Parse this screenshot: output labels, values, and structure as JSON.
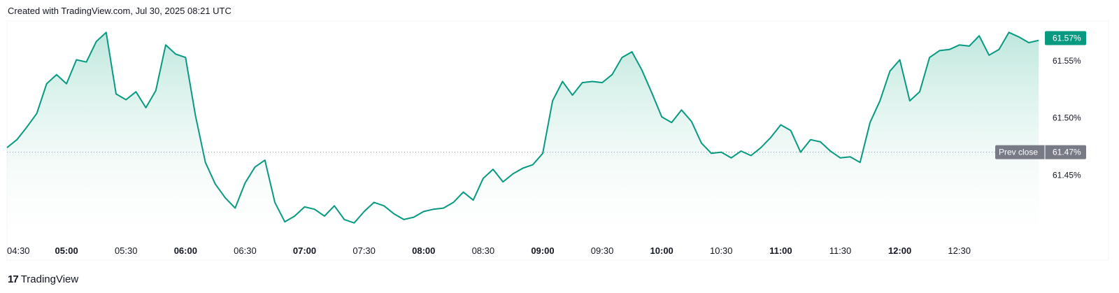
{
  "header": {
    "text": "Created with TradingView.com, Jul 30, 2025 08:21 UTC"
  },
  "footer": {
    "logo_mark": "17",
    "logo_text": "TradingView"
  },
  "colors": {
    "line": "#089981",
    "fill_top": "#a9dfd2",
    "fill_bottom": "#ffffff",
    "last_badge": "#089981",
    "prev_badge": "#787b86"
  },
  "chart_data": {
    "type": "area",
    "title": "",
    "xlabel": "",
    "ylabel": "",
    "x_ticks": [
      {
        "time": "04:30",
        "bold": false
      },
      {
        "time": "05:00",
        "bold": true
      },
      {
        "time": "05:30",
        "bold": false
      },
      {
        "time": "06:00",
        "bold": true
      },
      {
        "time": "06:30",
        "bold": false
      },
      {
        "time": "07:00",
        "bold": true
      },
      {
        "time": "07:30",
        "bold": false
      },
      {
        "time": "08:00",
        "bold": true
      },
      {
        "time": "08:30",
        "bold": false
      },
      {
        "time": "09:00",
        "bold": true
      },
      {
        "time": "09:30",
        "bold": false
      },
      {
        "time": "10:00",
        "bold": true
      },
      {
        "time": "10:30",
        "bold": false
      },
      {
        "time": "11:00",
        "bold": true
      },
      {
        "time": "11:30",
        "bold": false
      },
      {
        "time": "12:00",
        "bold": true
      },
      {
        "time": "12:30",
        "bold": false
      }
    ],
    "y_ticks": [
      "61.45%",
      "61.50%",
      "61.55%"
    ],
    "y_tick_values": [
      61.45,
      61.5,
      61.55
    ],
    "ylim": [
      61.395,
      61.585
    ],
    "xlim": [
      "04:30",
      "13:11"
    ],
    "prev_close": {
      "label": "Prev close",
      "value": 61.47,
      "text": "61.47%"
    },
    "last_value": {
      "value": 61.57,
      "text": "61.57%"
    },
    "series": [
      {
        "times": [
          "04:30",
          "04:35",
          "04:40",
          "04:45",
          "04:50",
          "04:55",
          "05:00",
          "05:05",
          "05:10",
          "05:15",
          "05:20",
          "05:25",
          "05:30",
          "05:35",
          "05:40",
          "05:45",
          "05:50",
          "05:55",
          "06:00",
          "06:05",
          "06:10",
          "06:15",
          "06:20",
          "06:25",
          "06:30",
          "06:35",
          "06:40",
          "06:45",
          "06:50",
          "06:55",
          "07:00",
          "07:05",
          "07:10",
          "07:15",
          "07:20",
          "07:25",
          "07:30",
          "07:35",
          "07:40",
          "07:45",
          "07:50",
          "07:55",
          "08:00",
          "08:05",
          "08:10",
          "08:15",
          "08:20",
          "08:25",
          "08:30",
          "08:35",
          "08:40",
          "08:45",
          "08:50",
          "08:55",
          "09:00",
          "09:05",
          "09:10",
          "09:15",
          "09:20",
          "09:25",
          "09:30",
          "09:35",
          "09:40",
          "09:45",
          "09:50",
          "09:55",
          "10:00",
          "10:05",
          "10:10",
          "10:15",
          "10:20",
          "10:25",
          "10:30",
          "10:35",
          "10:40",
          "10:45",
          "10:50",
          "10:55",
          "11:00",
          "11:05",
          "11:10",
          "11:15",
          "11:20",
          "11:25",
          "11:30",
          "11:35",
          "11:40",
          "11:45",
          "11:50",
          "11:55",
          "12:00",
          "12:05",
          "12:10",
          "12:15",
          "12:20",
          "12:25",
          "12:30",
          "12:35",
          "12:40",
          "12:45",
          "12:50",
          "12:55",
          "13:00",
          "13:05",
          "13:10"
        ],
        "values": [
          61.474,
          61.481,
          61.492,
          61.504,
          61.53,
          61.538,
          61.53,
          61.551,
          61.549,
          61.567,
          61.575,
          61.521,
          61.516,
          61.523,
          61.509,
          61.524,
          61.564,
          61.556,
          61.553,
          61.502,
          61.461,
          61.442,
          61.43,
          61.421,
          61.443,
          61.457,
          61.463,
          61.426,
          61.409,
          61.414,
          61.422,
          61.42,
          61.414,
          61.423,
          61.411,
          61.408,
          61.418,
          61.426,
          61.423,
          61.416,
          61.411,
          61.413,
          61.418,
          61.42,
          61.421,
          61.426,
          61.435,
          61.428,
          61.447,
          61.455,
          61.444,
          61.451,
          61.456,
          61.459,
          61.469,
          61.515,
          61.532,
          61.52,
          61.531,
          61.532,
          61.531,
          61.538,
          61.553,
          61.558,
          61.542,
          61.522,
          61.501,
          61.496,
          61.507,
          61.497,
          61.478,
          61.469,
          61.47,
          61.465,
          61.471,
          61.467,
          61.474,
          61.483,
          61.494,
          61.489,
          61.47,
          61.481,
          61.479,
          61.471,
          61.465,
          61.466,
          61.461,
          61.496,
          61.515,
          61.541,
          61.551,
          61.515,
          61.523,
          61.553,
          61.559,
          61.56,
          61.564,
          61.563,
          61.572,
          61.555,
          61.56,
          61.575,
          61.571,
          61.566,
          61.568
        ]
      }
    ],
    "grid": false,
    "legend": "none"
  }
}
